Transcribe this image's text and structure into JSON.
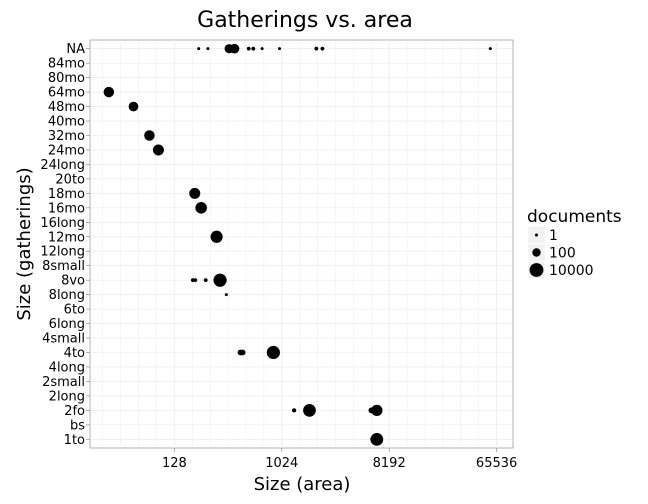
{
  "chart_data": {
    "type": "scatter",
    "title": "Gatherings vs. area",
    "xlabel": "Size (area)",
    "ylabel": "Size (gatherings)",
    "x_scale": "log2",
    "x_ticks": [
      128,
      1024,
      8192,
      65536
    ],
    "x_tick_labels": [
      "128",
      "1024",
      "8192",
      "65536"
    ],
    "xlim": [
      25,
      90000
    ],
    "categories": [
      "1to",
      "bs",
      "2fo",
      "2long",
      "2small",
      "4long",
      "4to",
      "4small",
      "6long",
      "6to",
      "8long",
      "8vo",
      "8small",
      "12long",
      "12mo",
      "16long",
      "16mo",
      "18mo",
      "20to",
      "24long",
      "24mo",
      "32mo",
      "40mo",
      "48mo",
      "64mo",
      "80mo",
      "84mo",
      "NA"
    ],
    "grid": true,
    "legend": {
      "title": "documents",
      "position": "right",
      "entries": [
        {
          "label": "1",
          "value": 1
        },
        {
          "label": "100",
          "value": 100
        },
        {
          "label": "10000",
          "value": 10000
        }
      ]
    },
    "points": [
      {
        "x": 6000,
        "y": "1to",
        "documents": 10
      },
      {
        "x": 6450,
        "y": "1to",
        "documents": 4000
      },
      {
        "x": 1300,
        "y": "2fo",
        "documents": 3
      },
      {
        "x": 1750,
        "y": "2fo",
        "documents": 4000
      },
      {
        "x": 5800,
        "y": "2fo",
        "documents": 10
      },
      {
        "x": 6450,
        "y": "2fo",
        "documents": 1200
      },
      {
        "x": 460,
        "y": "4to",
        "documents": 10
      },
      {
        "x": 480,
        "y": "4to",
        "documents": 10
      },
      {
        "x": 870,
        "y": "4to",
        "documents": 6000
      },
      {
        "x": 350,
        "y": "8long",
        "documents": 1
      },
      {
        "x": 183,
        "y": "8vo",
        "documents": 2
      },
      {
        "x": 192,
        "y": "8vo",
        "documents": 2
      },
      {
        "x": 235,
        "y": "8vo",
        "documents": 2
      },
      {
        "x": 310,
        "y": "8vo",
        "documents": 6000
      },
      {
        "x": 290,
        "y": "12mo",
        "documents": 2500
      },
      {
        "x": 215,
        "y": "16mo",
        "documents": 1500
      },
      {
        "x": 190,
        "y": "18mo",
        "documents": 900
      },
      {
        "x": 94,
        "y": "24mo",
        "documents": 900
      },
      {
        "x": 79,
        "y": "32mo",
        "documents": 600
      },
      {
        "x": 58,
        "y": "48mo",
        "documents": 300
      },
      {
        "x": 36,
        "y": "64mo",
        "documents": 600
      },
      {
        "x": 205,
        "y": "NA",
        "documents": 1
      },
      {
        "x": 245,
        "y": "NA",
        "documents": 1
      },
      {
        "x": 370,
        "y": "NA",
        "documents": 200
      },
      {
        "x": 410,
        "y": "NA",
        "documents": 300
      },
      {
        "x": 540,
        "y": "NA",
        "documents": 2
      },
      {
        "x": 590,
        "y": "NA",
        "documents": 2
      },
      {
        "x": 700,
        "y": "NA",
        "documents": 1
      },
      {
        "x": 980,
        "y": "NA",
        "documents": 1
      },
      {
        "x": 2000,
        "y": "NA",
        "documents": 2
      },
      {
        "x": 2250,
        "y": "NA",
        "documents": 2
      },
      {
        "x": 58000,
        "y": "NA",
        "documents": 1
      }
    ]
  }
}
